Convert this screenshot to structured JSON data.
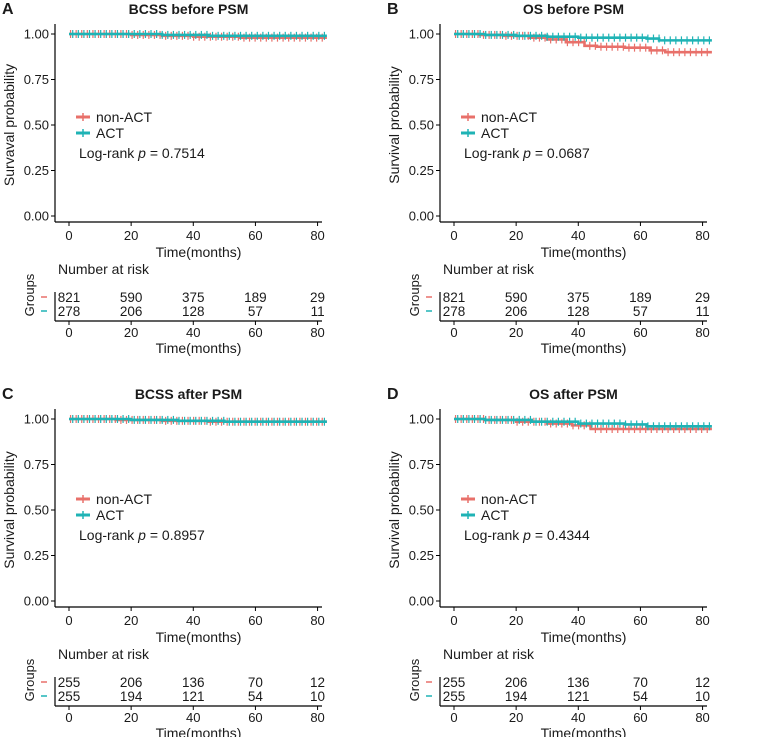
{
  "chart_data": [
    {
      "type": "line",
      "panel": "A",
      "title": "BCSS before PSM",
      "xlabel": "Time(months)",
      "ylabel": "Survaval probability",
      "xticks": [
        "0",
        "20",
        "40",
        "60",
        "80"
      ],
      "yticks": [
        "0.00",
        "0.25",
        "0.50",
        "0.75",
        "1.00"
      ],
      "xlim": [
        0,
        84
      ],
      "ylim": [
        0,
        1
      ],
      "legend": [
        "non-ACT",
        "ACT"
      ],
      "logrank": "Log-rank",
      "p_label": "p",
      "p_value": "= 0.7514",
      "series": [
        {
          "name": "non-ACT",
          "color": "#e8706a",
          "points": [
            [
              0,
              1
            ],
            [
              12,
              1
            ],
            [
              20,
              0.995
            ],
            [
              30,
              0.99
            ],
            [
              40,
              0.985
            ],
            [
              55,
              0.98
            ],
            [
              83,
              0.98
            ]
          ]
        },
        {
          "name": "ACT",
          "color": "#1fb3b5",
          "points": [
            [
              0,
              1
            ],
            [
              20,
              1
            ],
            [
              30,
              0.995
            ],
            [
              45,
              0.99
            ],
            [
              83,
              0.99
            ]
          ]
        }
      ],
      "risk": {
        "title": "Number at risk",
        "groups_label": "Groups",
        "xlabel": "Time(months)",
        "rows": [
          {
            "color": "#e8706a",
            "values": [
              "821",
              "590",
              "375",
              "189",
              "29"
            ]
          },
          {
            "color": "#1fb3b5",
            "values": [
              "278",
              "206",
              "128",
              "57",
              "11"
            ]
          }
        ]
      }
    },
    {
      "type": "line",
      "panel": "B",
      "title": "OS before PSM",
      "xlabel": "Time(months)",
      "ylabel": "Survival probability",
      "xticks": [
        "0",
        "20",
        "40",
        "60",
        "80"
      ],
      "yticks": [
        "0.00",
        "0.25",
        "0.50",
        "0.75",
        "1.00"
      ],
      "xlim": [
        0,
        84
      ],
      "ylim": [
        0,
        1
      ],
      "legend": [
        "non-ACT",
        "ACT"
      ],
      "logrank": "Log-rank",
      "p_label": "p",
      "p_value": "= 0.0687",
      "series": [
        {
          "name": "non-ACT",
          "color": "#e8706a",
          "points": [
            [
              0,
              1
            ],
            [
              8,
              0.995
            ],
            [
              16,
              0.99
            ],
            [
              24,
              0.98
            ],
            [
              30,
              0.97
            ],
            [
              36,
              0.955
            ],
            [
              42,
              0.935
            ],
            [
              46,
              0.93
            ],
            [
              55,
              0.925
            ],
            [
              63,
              0.91
            ],
            [
              68,
              0.9
            ],
            [
              83,
              0.9
            ]
          ]
        },
        {
          "name": "ACT",
          "color": "#1fb3b5",
          "points": [
            [
              0,
              1
            ],
            [
              10,
              0.995
            ],
            [
              20,
              0.99
            ],
            [
              30,
              0.985
            ],
            [
              40,
              0.98
            ],
            [
              55,
              0.98
            ],
            [
              62,
              0.975
            ],
            [
              66,
              0.965
            ],
            [
              83,
              0.965
            ]
          ]
        }
      ],
      "risk": {
        "title": "Number at risk",
        "groups_label": "Groups",
        "xlabel": "Time(months)",
        "rows": [
          {
            "color": "#e8706a",
            "values": [
              "821",
              "590",
              "375",
              "189",
              "29"
            ]
          },
          {
            "color": "#1fb3b5",
            "values": [
              "278",
              "206",
              "128",
              "57",
              "11"
            ]
          }
        ]
      }
    },
    {
      "type": "line",
      "panel": "C",
      "title": "BCSS after PSM",
      "xlabel": "Time(months)",
      "ylabel": "Survival probability",
      "xticks": [
        "0",
        "20",
        "40",
        "60",
        "80"
      ],
      "yticks": [
        "0.00",
        "0.25",
        "0.50",
        "0.75",
        "1.00"
      ],
      "xlim": [
        0,
        84
      ],
      "ylim": [
        0,
        1
      ],
      "legend": [
        "non-ACT",
        "ACT"
      ],
      "logrank": "Log-rank",
      "p_label": "p",
      "p_value": "= 0.8957",
      "series": [
        {
          "name": "non-ACT",
          "color": "#e8706a",
          "points": [
            [
              0,
              1
            ],
            [
              15,
              0.995
            ],
            [
              30,
              0.99
            ],
            [
              45,
              0.985
            ],
            [
              83,
              0.985
            ]
          ]
        },
        {
          "name": "ACT",
          "color": "#1fb3b5",
          "points": [
            [
              0,
              1
            ],
            [
              20,
              0.995
            ],
            [
              35,
              0.99
            ],
            [
              50,
              0.985
            ],
            [
              83,
              0.985
            ]
          ]
        }
      ],
      "risk": {
        "title": "Number at risk",
        "groups_label": "Groups",
        "xlabel": "Time(months)",
        "rows": [
          {
            "color": "#e8706a",
            "values": [
              "255",
              "206",
              "136",
              "70",
              "12"
            ]
          },
          {
            "color": "#1fb3b5",
            "values": [
              "255",
              "194",
              "121",
              "54",
              "10"
            ]
          }
        ]
      }
    },
    {
      "type": "line",
      "panel": "D",
      "title": "OS after PSM",
      "xlabel": "Time(months)",
      "ylabel": "Survival probability",
      "xticks": [
        "0",
        "20",
        "40",
        "60",
        "80"
      ],
      "yticks": [
        "0.00",
        "0.25",
        "0.50",
        "0.75",
        "1.00"
      ],
      "xlim": [
        0,
        84
      ],
      "ylim": [
        0,
        1
      ],
      "legend": [
        "non-ACT",
        "ACT"
      ],
      "logrank": "Log-rank",
      "p_label": "p",
      "p_value": "= 0.4344",
      "series": [
        {
          "name": "non-ACT",
          "color": "#e8706a",
          "points": [
            [
              0,
              1
            ],
            [
              10,
              0.995
            ],
            [
              20,
              0.985
            ],
            [
              30,
              0.975
            ],
            [
              38,
              0.965
            ],
            [
              44,
              0.945
            ],
            [
              83,
              0.945
            ]
          ]
        },
        {
          "name": "ACT",
          "color": "#1fb3b5",
          "points": [
            [
              0,
              1
            ],
            [
              10,
              0.995
            ],
            [
              25,
              0.985
            ],
            [
              40,
              0.975
            ],
            [
              55,
              0.97
            ],
            [
              62,
              0.96
            ],
            [
              83,
              0.96
            ]
          ]
        }
      ],
      "risk": {
        "title": "Number at risk",
        "groups_label": "Groups",
        "xlabel": "Time(months)",
        "rows": [
          {
            "color": "#e8706a",
            "values": [
              "255",
              "206",
              "136",
              "70",
              "12"
            ]
          },
          {
            "color": "#1fb3b5",
            "values": [
              "255",
              "194",
              "121",
              "54",
              "10"
            ]
          }
        ]
      }
    }
  ]
}
